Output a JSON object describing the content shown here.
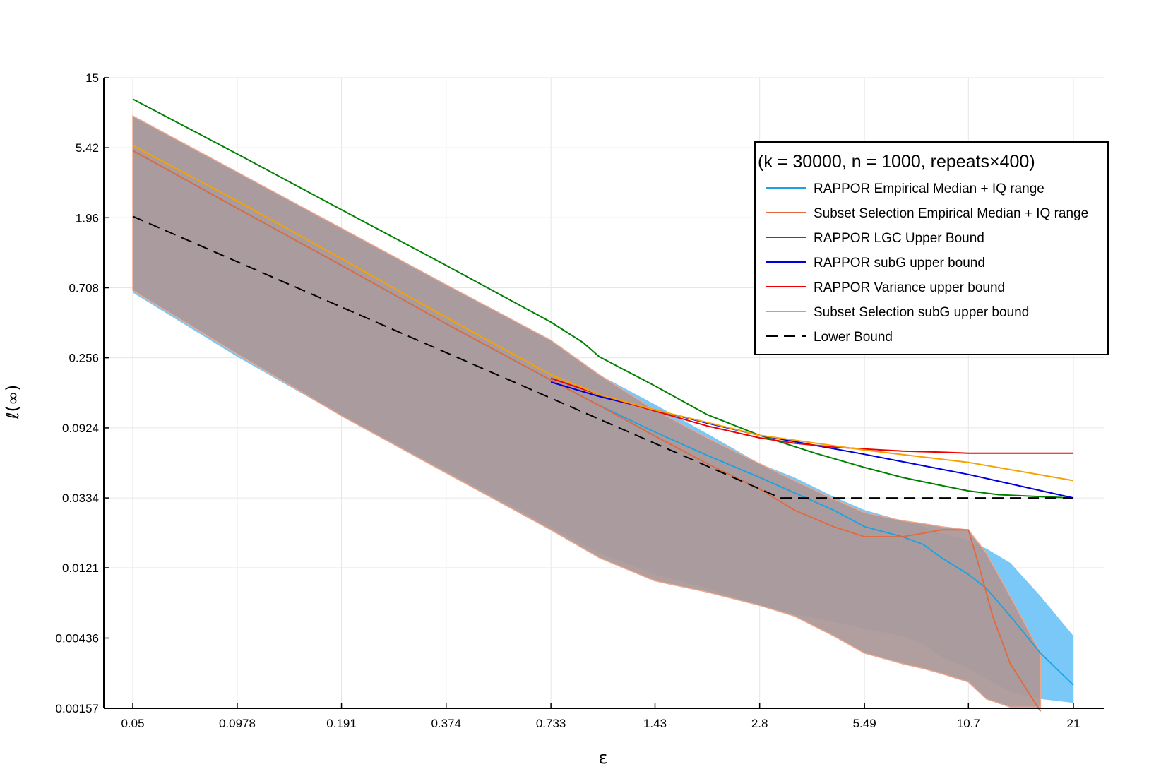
{
  "chart_data": {
    "type": "line",
    "title": "",
    "xlabel": "ε",
    "ylabel": "ℓ(∞)",
    "xscale": "log",
    "yscale": "log",
    "xlim": [
      0.05,
      21
    ],
    "ylim": [
      0.00157,
      15
    ],
    "xticks": [
      "0.05",
      "0.0978",
      "0.191",
      "0.374",
      "0.733",
      "1.43",
      "2.8",
      "5.49",
      "10.7",
      "21"
    ],
    "yticks": [
      "15",
      "5.42",
      "1.96",
      "0.708",
      "0.256",
      "0.0924",
      "0.0334",
      "0.0121",
      "0.00436",
      "0.00157"
    ],
    "grid": true,
    "legend_position": "top-right",
    "legend_title": "(k = 30000, n = 1000, repeats×400)",
    "colors": {
      "rappor_band": "#7ac8f7",
      "subset_band": "#ad9999",
      "subset_band_edge": "#eda88e",
      "rappor_median": "#1aa3e0",
      "subset_median": "#e3683a",
      "lgc": "#008000",
      "subg": "#0000dd",
      "variance": "#ee0000",
      "subset_subg": "#f5a300",
      "lower": "#000000"
    },
    "bands": [
      {
        "name": "RAPPOR IQ range",
        "x": [
          0.05,
          0.0978,
          0.191,
          0.374,
          0.733,
          1.0,
          1.43,
          2.0,
          2.8,
          3.5,
          4.5,
          5.49,
          7.0,
          8.0,
          9.0,
          10.7,
          12.0,
          14.0,
          17.0,
          21.0
        ],
        "upper": [
          8.6,
          3.8,
          1.68,
          0.74,
          0.33,
          0.2,
          0.13,
          0.085,
          0.055,
          0.045,
          0.034,
          0.028,
          0.024,
          0.022,
          0.02,
          0.018,
          0.016,
          0.013,
          0.008,
          0.0045
        ],
        "lower": [
          0.66,
          0.26,
          0.11,
          0.05,
          0.022,
          0.015,
          0.011,
          0.009,
          0.007,
          0.0062,
          0.0055,
          0.005,
          0.0045,
          0.004,
          0.0033,
          0.0028,
          0.0024,
          0.002,
          0.0018,
          0.0017
        ]
      },
      {
        "name": "Subset Selection IQ range",
        "x": [
          0.05,
          0.0978,
          0.191,
          0.374,
          0.733,
          1.0,
          1.43,
          2.0,
          2.8,
          3.5,
          4.5,
          5.49,
          7.0,
          8.0,
          9.0,
          10.7,
          12.0,
          14.0,
          17.0
        ],
        "upper": [
          8.6,
          3.8,
          1.68,
          0.74,
          0.33,
          0.2,
          0.12,
          0.08,
          0.055,
          0.043,
          0.033,
          0.027,
          0.024,
          0.023,
          0.022,
          0.021,
          0.015,
          0.008,
          0.0035
        ],
        "lower": [
          0.68,
          0.27,
          0.11,
          0.048,
          0.021,
          0.014,
          0.01,
          0.0085,
          0.007,
          0.006,
          0.0045,
          0.0035,
          0.003,
          0.0028,
          0.0026,
          0.0023,
          0.0018,
          0.0016,
          0.0016
        ]
      }
    ],
    "series": [
      {
        "name": "RAPPOR Empirical Median + IQ range",
        "x": [
          0.05,
          0.0978,
          0.191,
          0.374,
          0.733,
          1.0,
          1.43,
          2.0,
          2.8,
          3.5,
          4.5,
          5.49,
          7.0,
          8.0,
          9.0,
          10.7,
          12.0,
          14.0,
          17.0,
          21.0
        ],
        "y": [
          5.2,
          2.25,
          0.98,
          0.42,
          0.185,
          0.128,
          0.087,
          0.062,
          0.045,
          0.036,
          0.028,
          0.022,
          0.019,
          0.017,
          0.014,
          0.011,
          0.009,
          0.006,
          0.0035,
          0.0022
        ]
      },
      {
        "name": "Subset Selection Empirical Median + IQ range",
        "x": [
          0.05,
          0.0978,
          0.191,
          0.374,
          0.733,
          1.0,
          1.43,
          2.0,
          2.8,
          3.5,
          4.5,
          5.49,
          7.0,
          8.0,
          9.0,
          10.7,
          11.5,
          12.5,
          14.0,
          17.0
        ],
        "y": [
          5.2,
          2.25,
          0.98,
          0.42,
          0.185,
          0.128,
          0.082,
          0.055,
          0.038,
          0.028,
          0.022,
          0.019,
          0.019,
          0.02,
          0.021,
          0.021,
          0.012,
          0.006,
          0.003,
          0.0015
        ]
      },
      {
        "name": "RAPPOR LGC Upper Bound",
        "x": [
          0.05,
          0.0978,
          0.191,
          0.374,
          0.733,
          0.9,
          1.0,
          1.43,
          2.0,
          2.8,
          4.0,
          5.49,
          7.0,
          9.0,
          10.7,
          13.0,
          17.0,
          21.0
        ],
        "y": [
          11.0,
          4.95,
          2.2,
          0.98,
          0.43,
          0.32,
          0.26,
          0.17,
          0.112,
          0.083,
          0.064,
          0.052,
          0.045,
          0.04,
          0.037,
          0.035,
          0.034,
          0.0334
        ]
      },
      {
        "name": "RAPPOR subG upper bound",
        "x": [
          0.733,
          1.0,
          1.43,
          2.0,
          2.8,
          5.49,
          10.7,
          21.0
        ],
        "y": [
          0.18,
          0.146,
          0.12,
          0.099,
          0.083,
          0.063,
          0.047,
          0.0334
        ]
      },
      {
        "name": "RAPPOR Variance upper bound",
        "x": [
          0.733,
          1.0,
          1.43,
          2.0,
          2.8,
          3.5,
          4.5,
          5.49,
          7.0,
          9.0,
          10.7,
          14.0,
          21.0
        ],
        "y": [
          0.19,
          0.15,
          0.118,
          0.095,
          0.08,
          0.074,
          0.07,
          0.068,
          0.066,
          0.065,
          0.064,
          0.064,
          0.064
        ]
      },
      {
        "name": "Subset Selection subG upper bound",
        "x": [
          0.05,
          0.0978,
          0.191,
          0.374,
          0.733,
          1.0,
          1.43,
          2.0,
          2.8,
          5.49,
          10.7,
          21.0
        ],
        "y": [
          5.6,
          2.5,
          1.08,
          0.46,
          0.2,
          0.15,
          0.12,
          0.1,
          0.083,
          0.067,
          0.056,
          0.043
        ]
      },
      {
        "name": "Lower Bound",
        "x": [
          0.05,
          3.2,
          21.0
        ],
        "y": [
          2.0,
          0.0334,
          0.0334
        ]
      }
    ]
  }
}
